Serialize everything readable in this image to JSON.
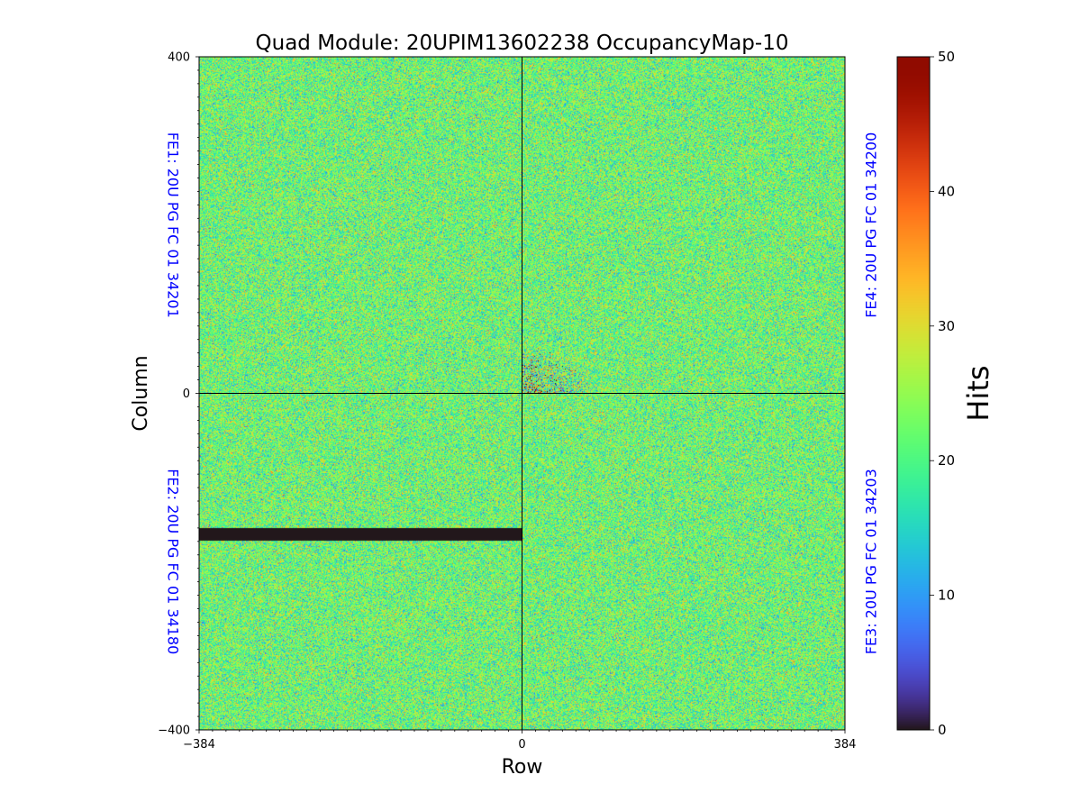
{
  "chart_data": {
    "type": "heatmap",
    "title": "Quad Module: 20UPIM13602238 OccupancyMap-10",
    "xlabel": "Row",
    "ylabel": "Column",
    "xlim": [
      -384,
      384
    ],
    "ylim": [
      -400,
      400
    ],
    "x_ticks": [
      -384,
      0,
      384
    ],
    "x_tick_labels": [
      "−384",
      "0",
      "384"
    ],
    "y_ticks": [
      -400,
      0,
      400
    ],
    "y_tick_labels": [
      "−400",
      "0",
      "400"
    ],
    "minor_tick_step": 16,
    "quadrant_labels": [
      {
        "id": "FE1",
        "text": "FE1: 20U PG FC 01 34201",
        "position": "top-left"
      },
      {
        "id": "FE2",
        "text": "FE2: 20U PG FC 01 34180",
        "position": "bottom-left"
      },
      {
        "id": "FE3",
        "text": "FE3: 20U PG FC 01 34203",
        "position": "bottom-right"
      },
      {
        "id": "FE4",
        "text": "FE4: 20U PG FC 01 34200",
        "position": "top-right"
      }
    ],
    "quadrant_label_color": "#0000ff",
    "divider_lines": {
      "x": 0,
      "y": 0
    },
    "typical_hits_mean": 22,
    "typical_hits_spread": 6,
    "dead_regions": [
      {
        "quadrant": "FE2",
        "x_range": [
          -384,
          0
        ],
        "y_range": [
          -175,
          -160
        ],
        "hits": 0
      }
    ],
    "noisy_regions": [
      {
        "quadrant": "FE4",
        "x_range": [
          0,
          80
        ],
        "y_range": [
          0,
          55
        ],
        "note": "higher spread near corner"
      }
    ],
    "colorbar": {
      "label": "Hits",
      "colormap": "turbo",
      "range": [
        0,
        50
      ],
      "ticks": [
        0,
        10,
        20,
        30,
        40,
        50
      ]
    }
  }
}
